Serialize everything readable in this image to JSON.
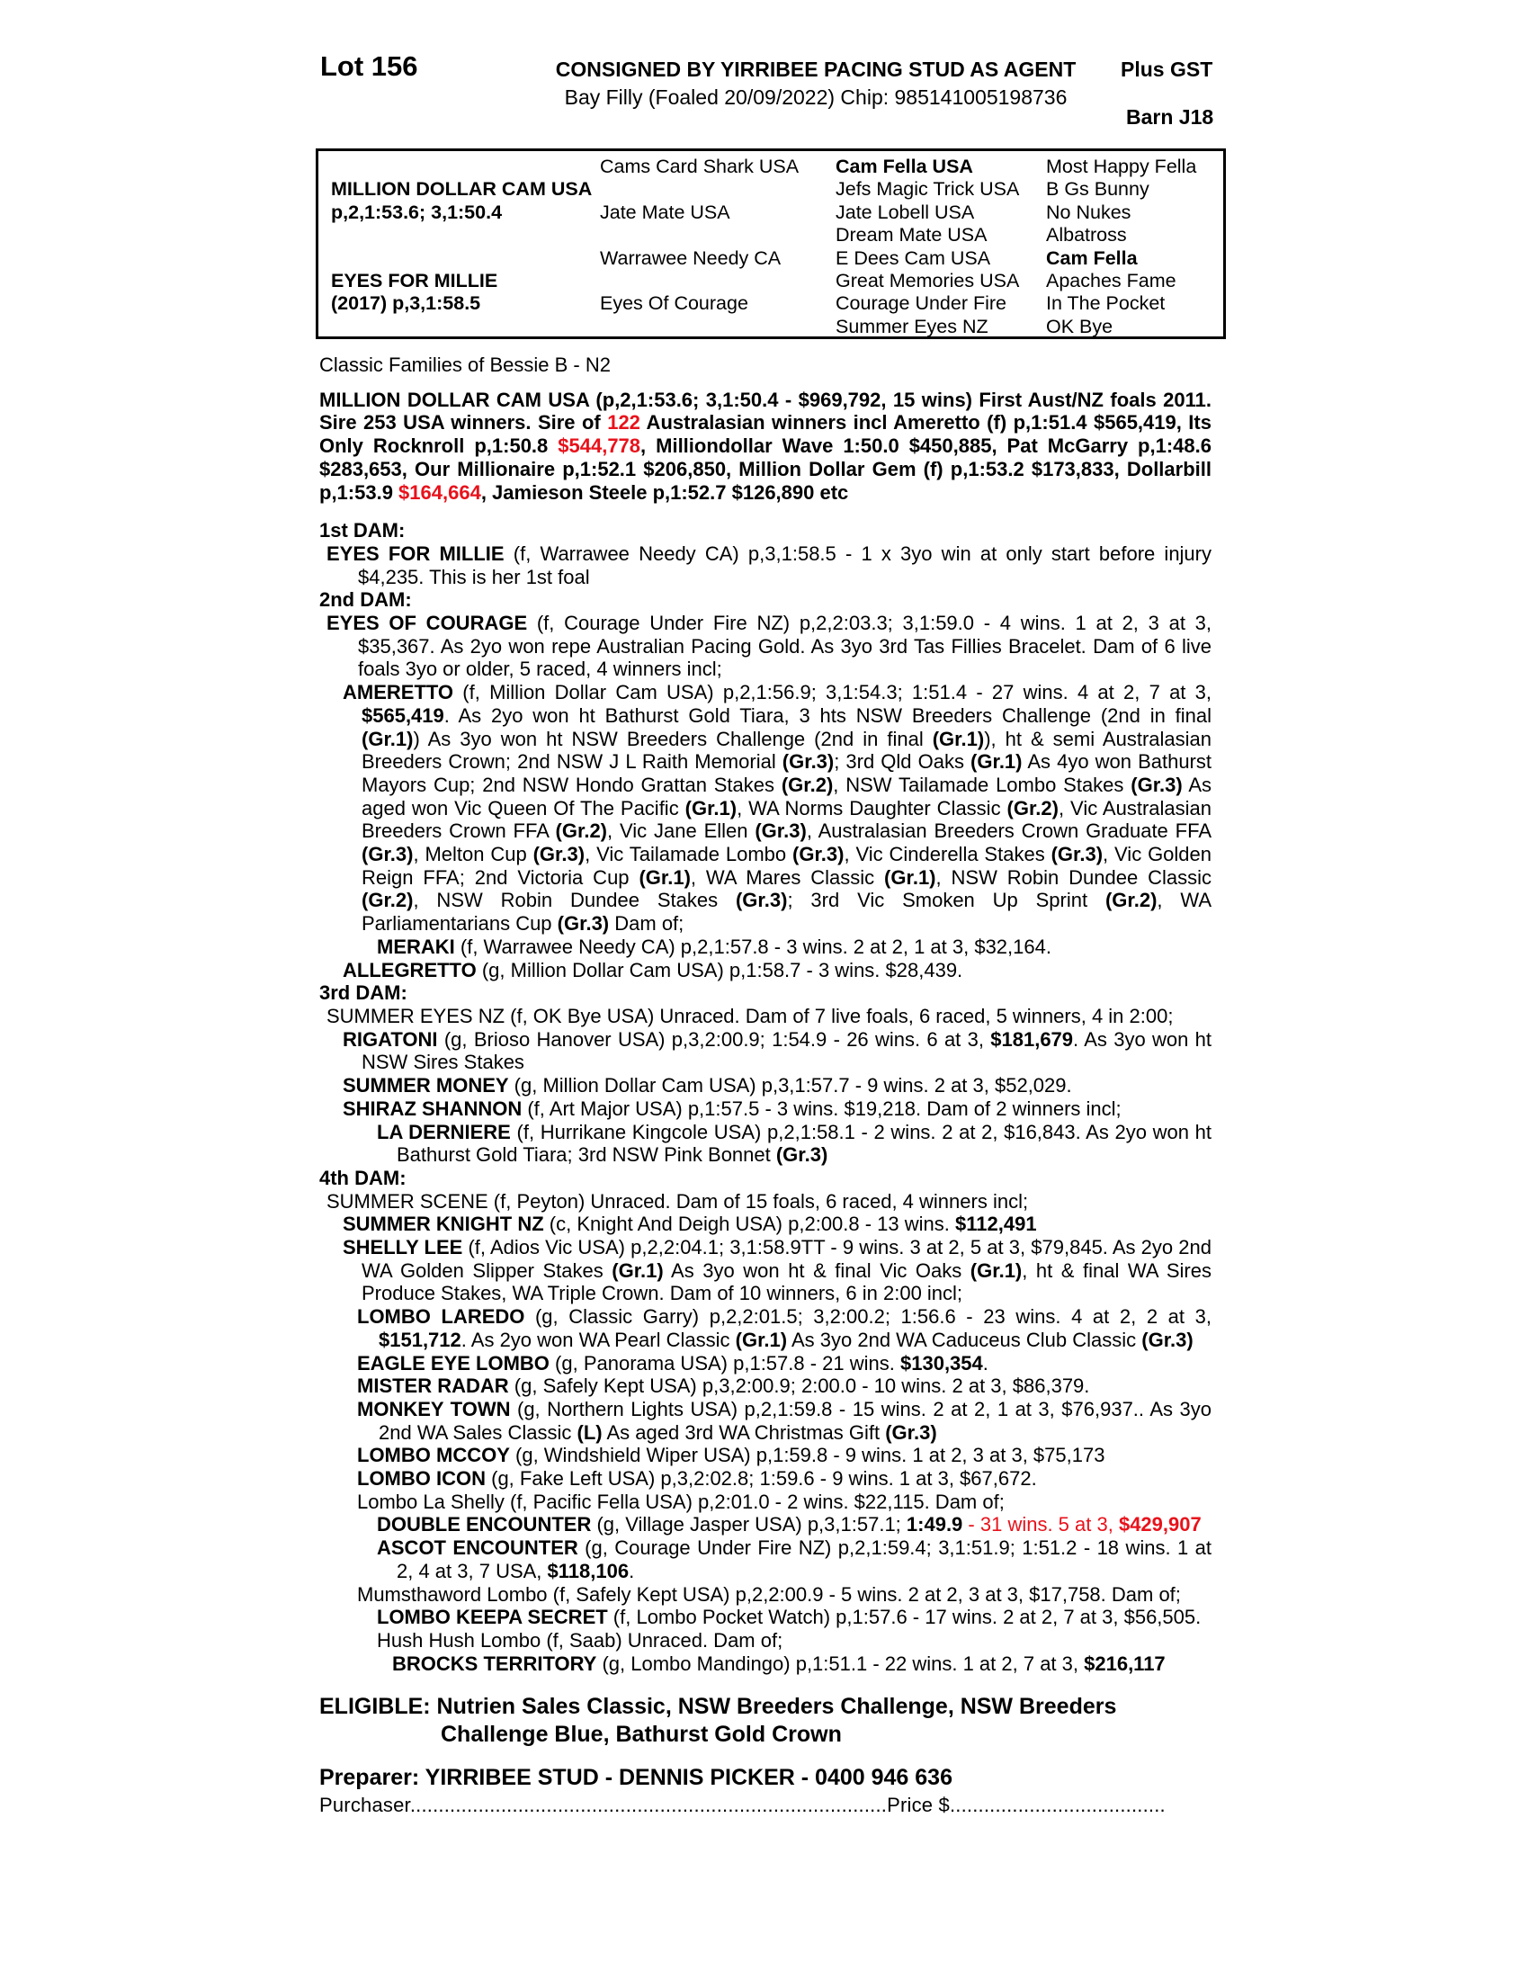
{
  "colors": {
    "red": "#e8121b",
    "text": "#000000",
    "background": "#ffffff"
  },
  "header": {
    "lot": "Lot 156",
    "consigned": "CONSIGNED BY YIRRIBEE PACING STUD AS AGENT",
    "plus_gst": "Plus GST",
    "subtitle": "Bay Filly (Foaled 20/09/2022) Chip: 985141005198736",
    "barn": "Barn J18"
  },
  "pedigree_table": {
    "rows": [
      [
        {
          "t": "",
          "b": false
        },
        {
          "t": "Cams Card Shark USA",
          "b": false
        },
        {
          "t": "Cam Fella USA",
          "b": true
        },
        {
          "t": "Most Happy Fella",
          "b": false
        }
      ],
      [
        {
          "t": "MILLION DOLLAR CAM USA",
          "b": true
        },
        {
          "t": "",
          "b": false
        },
        {
          "t": "Jefs Magic Trick USA",
          "b": false
        },
        {
          "t": "B Gs Bunny",
          "b": false
        }
      ],
      [
        {
          "t": "p,2,1:53.6; 3,1:50.4",
          "b": true
        },
        {
          "t": "Jate Mate USA",
          "b": false
        },
        {
          "t": "Jate Lobell USA",
          "b": false
        },
        {
          "t": "No Nukes",
          "b": false
        }
      ],
      [
        {
          "t": "",
          "b": false
        },
        {
          "t": "",
          "b": false
        },
        {
          "t": "Dream Mate USA",
          "b": false
        },
        {
          "t": "Albatross",
          "b": false
        }
      ],
      [
        {
          "t": "",
          "b": false
        },
        {
          "t": "Warrawee Needy CA",
          "b": false
        },
        {
          "t": "E Dees Cam USA",
          "b": false
        },
        {
          "t": "Cam Fella",
          "b": true
        }
      ],
      [
        {
          "t": "EYES FOR MILLIE",
          "b": true
        },
        {
          "t": "",
          "b": false
        },
        {
          "t": "Great Memories USA",
          "b": false
        },
        {
          "t": "Apaches Fame",
          "b": false
        }
      ],
      [
        {
          "t": "(2017) p,3,1:58.5",
          "b": true
        },
        {
          "t": "Eyes Of Courage",
          "b": false
        },
        {
          "t": "Courage Under Fire",
          "b": false
        },
        {
          "t": "In The Pocket",
          "b": false
        }
      ],
      [
        {
          "t": "",
          "b": false
        },
        {
          "t": "",
          "b": false
        },
        {
          "t": "Summer Eyes NZ",
          "b": false
        },
        {
          "t": "OK Bye",
          "b": false
        }
      ]
    ]
  },
  "body": {
    "classic_families": "Classic Families of Bessie B - N2",
    "sire_paragraph": [
      [
        "MILLION DOLLAR CAM USA (p,2,1:53.6; 3,1:50.4 - $969,792, 15 wins) First Aust/NZ foals 2011. Sire 253 USA winners. Sire of ",
        "b"
      ],
      [
        "122",
        "br"
      ],
      [
        " Australasian winners incl Ameretto (f) p,1:51.4 $565,419, Its Only Rocknroll p,1:50.8 ",
        "b"
      ],
      [
        "$544,778",
        "br"
      ],
      [
        ",  Milliondollar Wave 1:50.0 $450,885, Pat McGarry p,1:48.6 $283,653, Our Millionaire p,1:52.1 $206,850, Million Dollar Gem (f) p,1:53.2 $173,833, Dollarbill p,1:53.9 ",
        "b"
      ],
      [
        "$164,664",
        "br"
      ],
      [
        ", Jamieson Steele p,1:52.7 $126,890 etc",
        "b"
      ]
    ],
    "entries": [
      {
        "level": 0,
        "heading": true,
        "segs": [
          [
            "1st DAM:",
            "b"
          ]
        ]
      },
      {
        "level": 1,
        "segs": [
          [
            "EYES FOR MILLIE",
            "b"
          ],
          [
            " (f, Warrawee Needy CA) p,3,1:58.5 - 1 x 3yo win at only start before injury $4,235. This is her 1st foal",
            ""
          ]
        ]
      },
      {
        "level": 0,
        "heading": true,
        "segs": [
          [
            "2nd DAM:",
            "b"
          ]
        ]
      },
      {
        "level": 1,
        "segs": [
          [
            "EYES OF COURAGE",
            "b"
          ],
          [
            " (f, Courage Under Fire NZ) p,2,2:03.3; 3,1:59.0 - 4 wins. 1 at 2, 3 at 3, $35,367. As 2yo won repe Australian Pacing Gold. As 3yo 3rd Tas Fillies Bracelet. Dam of 6 live foals 3yo or older, 5 raced, 4 winners incl;",
            ""
          ]
        ]
      },
      {
        "level": 2,
        "segs": [
          [
            "AMERETTO",
            "b"
          ],
          [
            " (f, Million Dollar Cam USA) p,2,1:56.9; 3,1:54.3; 1:51.4 - 27 wins. 4 at 2, 7 at 3, ",
            ""
          ],
          [
            "$565,419",
            "b"
          ],
          [
            ". As 2yo won ht Bathurst Gold Tiara, 3 hts NSW Breeders Challenge (2nd in final ",
            ""
          ],
          [
            "(Gr.1)",
            "b"
          ],
          [
            ") As 3yo won ht NSW Breeders Challenge (2nd in final ",
            ""
          ],
          [
            "(Gr.1)",
            "b"
          ],
          [
            "), ht & semi Australasian Breeders Crown; 2nd NSW J L Raith Memorial ",
            ""
          ],
          [
            "(Gr.3)",
            "b"
          ],
          [
            "; 3rd Qld Oaks ",
            ""
          ],
          [
            "(Gr.1)",
            "b"
          ],
          [
            " As 4yo won Bathurst Mayors Cup; 2nd NSW Hondo Grattan Stakes ",
            ""
          ],
          [
            "(Gr.2)",
            "b"
          ],
          [
            ", NSW Tailamade Lombo Stakes ",
            ""
          ],
          [
            "(Gr.3)",
            "b"
          ],
          [
            " As aged won Vic Queen Of The Pacific ",
            ""
          ],
          [
            "(Gr.1)",
            "b"
          ],
          [
            ", WA Norms Daughter Classic ",
            ""
          ],
          [
            "(Gr.2)",
            "b"
          ],
          [
            ", Vic Australasian Breeders Crown FFA ",
            ""
          ],
          [
            "(Gr.2)",
            "b"
          ],
          [
            ", Vic Jane Ellen ",
            ""
          ],
          [
            "(Gr.3)",
            "b"
          ],
          [
            ", Australasian Breeders Crown Graduate FFA ",
            ""
          ],
          [
            "(Gr.3)",
            "b"
          ],
          [
            ", Melton Cup ",
            ""
          ],
          [
            "(Gr.3)",
            "b"
          ],
          [
            ", Vic Tailamade Lombo ",
            ""
          ],
          [
            "(Gr.3)",
            "b"
          ],
          [
            ", Vic Cinderella Stakes ",
            ""
          ],
          [
            "(Gr.3)",
            "b"
          ],
          [
            ", Vic Golden Reign FFA; 2nd Victoria Cup ",
            ""
          ],
          [
            "(Gr.1)",
            "b"
          ],
          [
            ", WA Mares Classic ",
            ""
          ],
          [
            "(Gr.1)",
            "b"
          ],
          [
            ", NSW Robin Dundee Classic ",
            ""
          ],
          [
            "(Gr.2)",
            "b"
          ],
          [
            ", NSW Robin Dundee Stakes ",
            ""
          ],
          [
            "(Gr.3)",
            "b"
          ],
          [
            "; 3rd Vic Smoken Up Sprint ",
            ""
          ],
          [
            "(Gr.2)",
            "b"
          ],
          [
            ", WA Parliamentarians Cup ",
            ""
          ],
          [
            "(Gr.3)",
            "b"
          ],
          [
            " Dam of;",
            ""
          ]
        ]
      },
      {
        "level": 4,
        "segs": [
          [
            "MERAKI",
            "b"
          ],
          [
            " (f, Warrawee Needy CA) p,2,1:57.8 - 3 wins. 2 at 2, 1 at 3, $32,164.",
            ""
          ]
        ]
      },
      {
        "level": 2,
        "segs": [
          [
            "ALLEGRETTO",
            "b"
          ],
          [
            " (g, Million Dollar Cam USA) p,1:58.7 - 3 wins. $28,439.",
            ""
          ]
        ]
      },
      {
        "level": 0,
        "heading": true,
        "segs": [
          [
            "3rd DAM:",
            "b"
          ]
        ]
      },
      {
        "level": 1,
        "segs": [
          [
            "SUMMER EYES NZ (f, OK Bye USA) Unraced. Dam of 7 live foals, 6 raced, 5 winners, 4 in 2:00;",
            ""
          ]
        ]
      },
      {
        "level": 2,
        "segs": [
          [
            "RIGATONI",
            "b"
          ],
          [
            " (g, Brioso Hanover USA) p,3,2:00.9; 1:54.9 - 26 wins. 6 at 3, ",
            ""
          ],
          [
            "$181,679",
            "b"
          ],
          [
            ". As 3yo won ht NSW Sires Stakes",
            ""
          ]
        ]
      },
      {
        "level": 2,
        "segs": [
          [
            "SUMMER MONEY",
            "b"
          ],
          [
            " (g, Million Dollar Cam USA) p,3,1:57.7 - 9 wins. 2 at 3, $52,029.",
            ""
          ]
        ]
      },
      {
        "level": 2,
        "segs": [
          [
            "SHIRAZ SHANNON",
            "b"
          ],
          [
            " (f, Art Major USA) p,1:57.5 - 3 wins. $19,218. Dam of 2 winners incl;",
            ""
          ]
        ]
      },
      {
        "level": 4,
        "segs": [
          [
            "LA DERNIERE",
            "b"
          ],
          [
            " (f, Hurrikane Kingcole USA) p,2,1:58.1 - 2 wins. 2 at 2, $16,843. As 2yo won ht Bathurst Gold Tiara; 3rd NSW Pink Bonnet ",
            ""
          ],
          [
            "(Gr.3)",
            "b"
          ]
        ]
      },
      {
        "level": 0,
        "heading": true,
        "segs": [
          [
            "4th DAM:",
            "b"
          ]
        ]
      },
      {
        "level": 1,
        "segs": [
          [
            "SUMMER SCENE (f, Peyton) Unraced. Dam of 15 foals, 6 raced, 4 winners incl;",
            ""
          ]
        ]
      },
      {
        "level": 2,
        "segs": [
          [
            "SUMMER KNIGHT NZ",
            "b"
          ],
          [
            " (c, Knight And Deigh USA) p,2:00.8 - 13 wins. ",
            ""
          ],
          [
            "$112,491",
            "b"
          ]
        ]
      },
      {
        "level": 2,
        "segs": [
          [
            "SHELLY LEE",
            "b"
          ],
          [
            " (f, Adios Vic USA) p,2,2:04.1; 3,1:58.9TT - 9 wins. 3 at 2, 5 at 3, $79,845. As 2yo 2nd WA Golden Slipper Stakes ",
            ""
          ],
          [
            "(Gr.1)",
            "b"
          ],
          [
            " As 3yo won ht & final Vic Oaks ",
            ""
          ],
          [
            "(Gr.1)",
            "b"
          ],
          [
            ", ht & final WA Sires Produce Stakes, WA Triple Crown. Dam of 10 winners, 6 in 2:00 incl;",
            ""
          ]
        ]
      },
      {
        "level": 3,
        "segs": [
          [
            "LOMBO LAREDO",
            "b"
          ],
          [
            " (g, Classic Garry) p,2,2:01.5; 3,2:00.2; 1:56.6 - 23 wins. 4 at 2, 2 at 3, ",
            ""
          ],
          [
            "$151,712",
            "b"
          ],
          [
            ". As 2yo won WA Pearl Classic ",
            ""
          ],
          [
            "(Gr.1)",
            "b"
          ],
          [
            " As 3yo 2nd WA Caduceus Club Classic ",
            ""
          ],
          [
            "(Gr.3)",
            "b"
          ]
        ]
      },
      {
        "level": 3,
        "segs": [
          [
            "EAGLE EYE LOMBO",
            "b"
          ],
          [
            " (g, Panorama USA) p,1:57.8 - 21 wins. ",
            ""
          ],
          [
            "$130,354",
            "b"
          ],
          [
            ".",
            ""
          ]
        ]
      },
      {
        "level": 3,
        "segs": [
          [
            "MISTER RADAR",
            "b"
          ],
          [
            " (g, Safely Kept USA) p,3,2:00.9; 2:00.0 - 10 wins. 2 at 3, $86,379.",
            ""
          ]
        ]
      },
      {
        "level": 3,
        "segs": [
          [
            "MONKEY TOWN",
            "b"
          ],
          [
            " (g, Northern Lights USA) p,2,1:59.8 - 15 wins. 2 at 2, 1 at 3, $76,937.. As 3yo 2nd WA Sales Classic ",
            ""
          ],
          [
            "(L)",
            "b"
          ],
          [
            " As aged 3rd WA Christmas Gift ",
            ""
          ],
          [
            "(Gr.3)",
            "b"
          ]
        ]
      },
      {
        "level": 3,
        "segs": [
          [
            "LOMBO MCCOY",
            "b"
          ],
          [
            " (g, Windshield Wiper USA) p,1:59.8 - 9 wins. 1 at 2, 3 at 3, $75,173",
            ""
          ]
        ]
      },
      {
        "level": 3,
        "segs": [
          [
            "LOMBO ICON",
            "b"
          ],
          [
            " (g, Fake Left USA) p,3,2:02.8; 1:59.6 - 9 wins. 1 at 3, $67,672.",
            ""
          ]
        ]
      },
      {
        "level": 3,
        "segs": [
          [
            "Lombo La Shelly (f, Pacific Fella USA) p,2:01.0 - 2 wins. $22,115. Dam of;",
            ""
          ]
        ]
      },
      {
        "level": 4,
        "segs": [
          [
            "DOUBLE ENCOUNTER",
            "b"
          ],
          [
            " (g, Village Jasper USA) p,3,1:57.1; ",
            ""
          ],
          [
            "1:49.9",
            "b"
          ],
          [
            " - ",
            "r"
          ],
          [
            "31 wins. 5 at 3, ",
            "r"
          ],
          [
            "$429,907",
            "br"
          ]
        ]
      },
      {
        "level": 4,
        "segs": [
          [
            "ASCOT ENCOUNTER",
            "b"
          ],
          [
            " (g, Courage Under Fire NZ) p,2,1:59.4; 3,1:51.9; 1:51.2 - 18 wins. 1 at 2, 4 at 3, 7 USA, ",
            ""
          ],
          [
            "$118,106",
            "b"
          ],
          [
            ".",
            ""
          ]
        ]
      },
      {
        "level": 3,
        "segs": [
          [
            "Mumsthaword Lombo (f, Safely Kept USA) p,2,2:00.9 - 5 wins. 2 at 2, 3 at 3, $17,758. Dam of;",
            ""
          ]
        ]
      },
      {
        "level": 4,
        "segs": [
          [
            "LOMBO KEEPA SECRET",
            "b"
          ],
          [
            " (f, Lombo Pocket Watch) p,1:57.6 - 17 wins. 2 at 2, 7 at 3, $56,505.",
            ""
          ]
        ]
      },
      {
        "level": 4,
        "segs": [
          [
            "Hush Hush Lombo (f, Saab) Unraced. Dam of;",
            ""
          ]
        ]
      },
      {
        "level": 5,
        "segs": [
          [
            "BROCKS TERRITORY",
            "b"
          ],
          [
            " (g, Lombo Mandingo) p,1:51.1 - 22 wins. 1 at 2, 7 at 3, ",
            ""
          ],
          [
            "$216,117",
            "b"
          ]
        ]
      }
    ]
  },
  "footer": {
    "eligible_line1": "ELIGIBLE: Nutrien Sales Classic, NSW Breeders Challenge, NSW Breeders",
    "eligible_line2": "Challenge Blue, Bathurst Gold Crown",
    "preparer": "Preparer: YIRRIBEE STUD - DENNIS PICKER - 0400 946 636",
    "purchaser_label": "Purchaser",
    "purchaser_dots": "....................................................................................",
    "price_label": "Price $",
    "price_dots": "......................................"
  }
}
